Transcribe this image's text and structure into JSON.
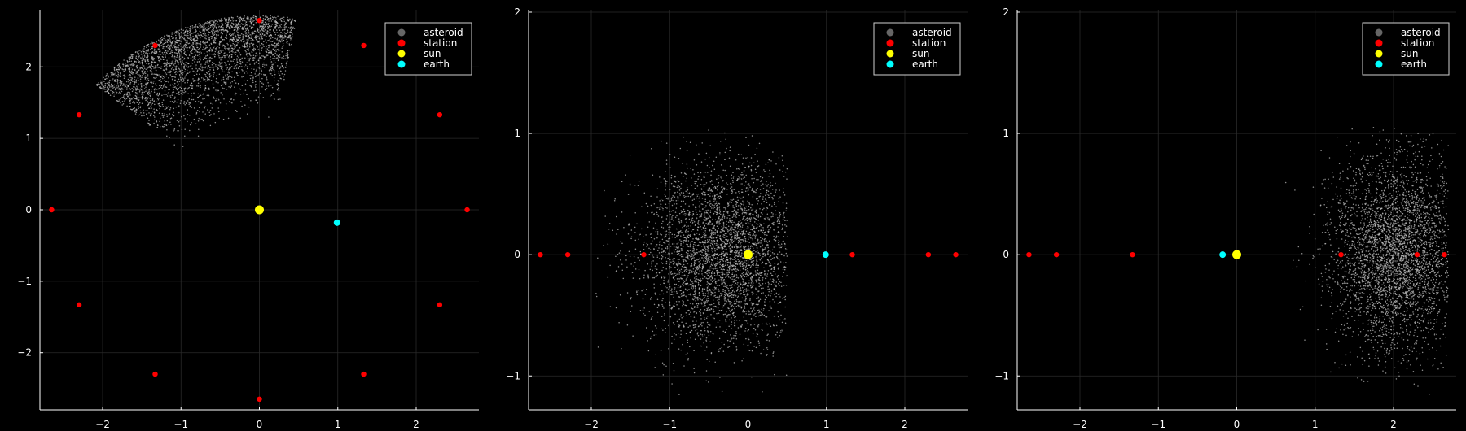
{
  "colors": {
    "background": "#000000",
    "axis": "#ffffff",
    "grid": "#2a2a2a",
    "asteroid": "#bfbfbf",
    "station": "#ff0000",
    "sun": "#ffff00",
    "earth": "#00ffff"
  },
  "legend": {
    "placement": "top-right",
    "items": [
      {
        "label": "asteroid",
        "color": "#666666"
      },
      {
        "label": "station",
        "color": "#ff0000"
      },
      {
        "label": "sun",
        "color": "#ffff00"
      },
      {
        "label": "earth",
        "color": "#00ffff"
      }
    ]
  },
  "chart_data": [
    {
      "type": "scatter",
      "title": "",
      "xlabel": "",
      "ylabel": "",
      "xlim": [
        -2.8,
        2.8
      ],
      "ylim": [
        -2.8,
        2.8
      ],
      "xticks": [
        -2,
        -1,
        0,
        1,
        2
      ],
      "yticks": [
        -2,
        -1,
        0,
        1,
        2
      ],
      "xtick_labels": [
        "−2",
        "−1",
        "0",
        "1",
        "2"
      ],
      "ytick_labels": [
        "−2",
        "−1",
        "0",
        "1",
        "2"
      ],
      "grid": true,
      "legend_placement": "top-right",
      "asteroid_cloud": {
        "shape": "annular-sector",
        "angle_deg": [
          80,
          140
        ],
        "r_range": [
          1.2,
          2.72
        ],
        "count": 3200
      },
      "series": [
        {
          "name": "station",
          "points": [
            [
              2.65,
              0.0
            ],
            [
              2.3,
              1.33
            ],
            [
              1.33,
              2.3
            ],
            [
              0.0,
              2.65
            ],
            [
              -1.33,
              2.3
            ],
            [
              -2.3,
              1.33
            ],
            [
              -2.65,
              0.0
            ],
            [
              -2.3,
              -1.33
            ],
            [
              -1.33,
              -2.3
            ],
            [
              0.0,
              -2.65
            ],
            [
              1.33,
              -2.3
            ],
            [
              2.3,
              -1.33
            ]
          ]
        },
        {
          "name": "sun",
          "points": [
            [
              0.0,
              0.0
            ]
          ]
        },
        {
          "name": "earth",
          "points": [
            [
              0.99,
              -0.18
            ]
          ]
        }
      ]
    },
    {
      "type": "scatter",
      "title": "",
      "xlabel": "",
      "ylabel": "",
      "xlim": [
        -2.8,
        2.8
      ],
      "ylim": [
        -1.28,
        2.02
      ],
      "xticks": [
        -2,
        -1,
        0,
        1,
        2
      ],
      "yticks": [
        -1,
        0,
        1,
        2
      ],
      "xtick_labels": [
        "−2",
        "−1",
        "0",
        "1",
        "2"
      ],
      "ytick_labels": [
        "−1",
        "0",
        "1",
        "2"
      ],
      "grid": true,
      "legend_placement": "top-right",
      "asteroid_cloud": {
        "shape": "gaussian-clipped",
        "center": [
          -0.3,
          0.0
        ],
        "spread": [
          0.55,
          0.38
        ],
        "x_range": [
          -2.0,
          0.5
        ],
        "count": 3600
      },
      "series": [
        {
          "name": "station",
          "points": [
            [
              -2.65,
              0.0
            ],
            [
              -2.3,
              0.0
            ],
            [
              -1.33,
              0.0
            ],
            [
              1.33,
              0.0
            ],
            [
              2.3,
              0.0
            ],
            [
              2.65,
              0.0
            ]
          ]
        },
        {
          "name": "sun",
          "points": [
            [
              0.0,
              0.0
            ]
          ]
        },
        {
          "name": "earth",
          "points": [
            [
              0.99,
              0.0
            ]
          ]
        }
      ]
    },
    {
      "type": "scatter",
      "title": "",
      "xlabel": "",
      "ylabel": "",
      "xlim": [
        -2.8,
        2.8
      ],
      "ylim": [
        -1.28,
        2.02
      ],
      "xticks": [
        -2,
        -1,
        0,
        1,
        2
      ],
      "yticks": [
        -1,
        0,
        1,
        2
      ],
      "xtick_labels": [
        "−2",
        "−1",
        "0",
        "1",
        "2"
      ],
      "ytick_labels": [
        "−1",
        "0",
        "1",
        "2"
      ],
      "grid": true,
      "legend_placement": "top-right",
      "asteroid_cloud": {
        "shape": "gaussian-clipped",
        "center": [
          2.05,
          0.0
        ],
        "spread": [
          0.42,
          0.4
        ],
        "x_range": [
          0.3,
          2.7
        ],
        "count": 3600
      },
      "series": [
        {
          "name": "station",
          "points": [
            [
              -2.65,
              0.0
            ],
            [
              -2.3,
              0.0
            ],
            [
              -1.33,
              0.0
            ],
            [
              1.33,
              0.0
            ],
            [
              2.3,
              0.0
            ],
            [
              2.65,
              0.0
            ]
          ]
        },
        {
          "name": "sun",
          "points": [
            [
              0.0,
              0.0
            ]
          ]
        },
        {
          "name": "earth",
          "points": [
            [
              -0.18,
              0.0
            ]
          ]
        }
      ]
    }
  ]
}
